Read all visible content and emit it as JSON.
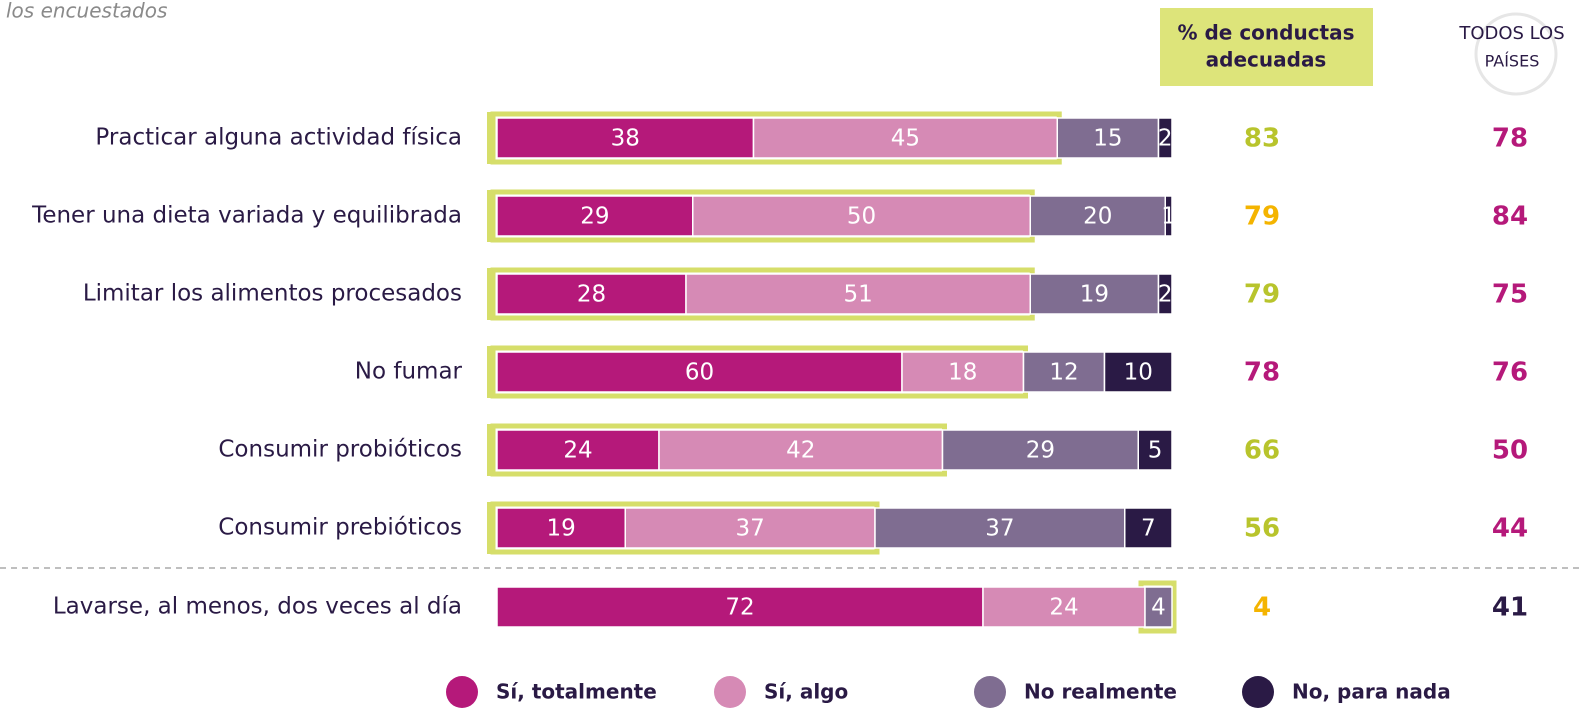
{
  "chart_data": {
    "type": "stacked-bar",
    "subtitle": "los encuestados",
    "categories": [
      "Practicar alguna actividad física",
      "Tener una dieta variada y equilibrada",
      "Limitar los alimentos procesados",
      "No fumar",
      "Consumir probióticos",
      "Consumir prebióticos",
      "Lavarse, al menos, dos veces al día"
    ],
    "series": [
      {
        "name": "Sí, totalmente",
        "color": "#b5197a",
        "values": [
          38,
          29,
          28,
          60,
          24,
          19,
          72
        ]
      },
      {
        "name": "Sí, algo",
        "color": "#d68ab5",
        "values": [
          45,
          50,
          51,
          18,
          42,
          37,
          24
        ]
      },
      {
        "name": "No realmente",
        "color": "#7f6d91",
        "values": [
          15,
          20,
          19,
          12,
          29,
          37,
          4
        ]
      },
      {
        "name": "No, para nada",
        "color": "#2a1a45",
        "values": [
          2,
          1,
          2,
          10,
          5,
          7,
          null
        ]
      }
    ],
    "xlim": [
      0,
      100
    ],
    "adequate": {
      "title": [
        "% de conductas",
        "adecuadas"
      ],
      "background": "#dde47a",
      "highlight_color": "#d6de6a",
      "values": [
        83,
        79,
        79,
        78,
        66,
        56,
        4
      ],
      "colors": [
        "#b8c42c",
        "#f4b400",
        "#b8c42c",
        "#b5197a",
        "#b8c42c",
        "#b8c42c",
        "#f4b400"
      ]
    },
    "all_countries": {
      "title": [
        "TODOS LOS",
        "PAÍSES"
      ],
      "values": [
        78,
        84,
        75,
        76,
        50,
        44,
        41
      ],
      "colors": [
        "#b5197a",
        "#b5197a",
        "#b5197a",
        "#b5197a",
        "#b5197a",
        "#b5197a",
        "#2a1a45"
      ]
    }
  }
}
